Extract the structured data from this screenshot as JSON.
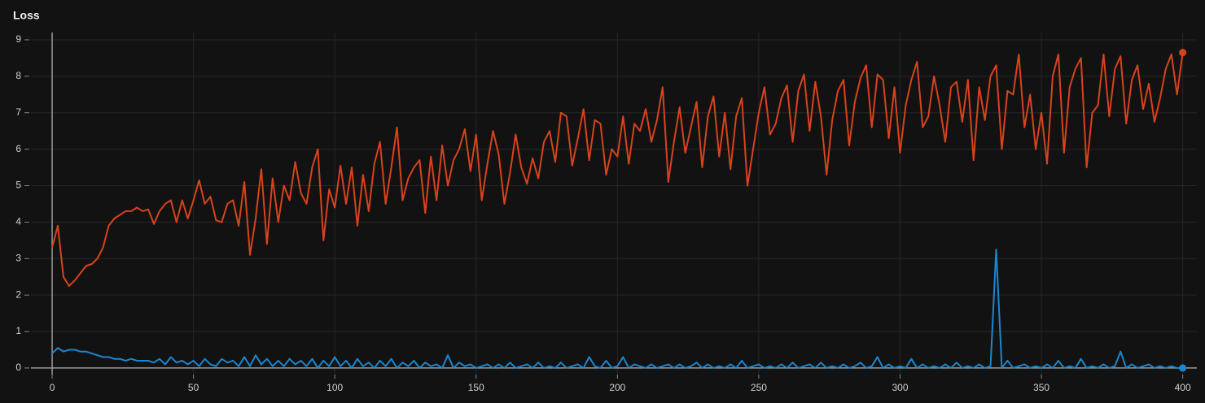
{
  "chart_data": {
    "type": "line",
    "title": "Loss",
    "x": [
      0,
      2,
      4,
      6,
      8,
      10,
      12,
      14,
      16,
      18,
      20,
      22,
      24,
      26,
      28,
      30,
      32,
      34,
      36,
      38,
      40,
      42,
      44,
      46,
      48,
      50,
      52,
      54,
      56,
      58,
      60,
      62,
      64,
      66,
      68,
      70,
      72,
      74,
      76,
      78,
      80,
      82,
      84,
      86,
      88,
      90,
      92,
      94,
      96,
      98,
      100,
      102,
      104,
      106,
      108,
      110,
      112,
      114,
      116,
      118,
      120,
      122,
      124,
      126,
      128,
      130,
      132,
      134,
      136,
      138,
      140,
      142,
      144,
      146,
      148,
      150,
      152,
      154,
      156,
      158,
      160,
      162,
      164,
      166,
      168,
      170,
      172,
      174,
      176,
      178,
      180,
      182,
      184,
      186,
      188,
      190,
      192,
      194,
      196,
      198,
      200,
      202,
      204,
      206,
      208,
      210,
      212,
      214,
      216,
      218,
      220,
      222,
      224,
      226,
      228,
      230,
      232,
      234,
      236,
      238,
      240,
      242,
      244,
      246,
      248,
      250,
      252,
      254,
      256,
      258,
      260,
      262,
      264,
      266,
      268,
      270,
      272,
      274,
      276,
      278,
      280,
      282,
      284,
      286,
      288,
      290,
      292,
      294,
      296,
      298,
      300,
      302,
      304,
      306,
      308,
      310,
      312,
      314,
      316,
      318,
      320,
      322,
      324,
      326,
      328,
      330,
      332,
      334,
      336,
      338,
      340,
      342,
      344,
      346,
      348,
      350,
      352,
      354,
      356,
      358,
      360,
      362,
      364,
      366,
      368,
      370,
      372,
      374,
      376,
      378,
      380,
      382,
      384,
      386,
      388,
      390,
      392,
      394,
      396,
      398,
      400
    ],
    "series": [
      {
        "color": "#d8431c",
        "values": [
          3.3,
          3.9,
          2.5,
          2.25,
          2.4,
          2.6,
          2.8,
          2.85,
          3.0,
          3.3,
          3.9,
          4.1,
          4.2,
          4.3,
          4.3,
          4.4,
          4.3,
          4.35,
          3.95,
          4.3,
          4.5,
          4.6,
          4.0,
          4.6,
          4.1,
          4.6,
          5.15,
          4.5,
          4.7,
          4.05,
          4.0,
          4.5,
          4.6,
          3.9,
          5.1,
          3.1,
          4.1,
          5.45,
          3.4,
          5.2,
          4.0,
          5.0,
          4.6,
          5.65,
          4.8,
          4.5,
          5.5,
          6.0,
          3.5,
          4.9,
          4.4,
          5.55,
          4.5,
          5.5,
          3.9,
          5.3,
          4.3,
          5.6,
          6.2,
          4.5,
          5.5,
          6.6,
          4.6,
          5.2,
          5.5,
          5.7,
          4.25,
          5.8,
          4.6,
          6.1,
          5.0,
          5.7,
          6.0,
          6.55,
          5.4,
          6.4,
          4.6,
          5.6,
          6.5,
          5.85,
          4.5,
          5.35,
          6.4,
          5.5,
          5.05,
          5.75,
          5.2,
          6.2,
          6.5,
          5.65,
          7.0,
          6.9,
          5.55,
          6.3,
          7.1,
          5.7,
          6.8,
          6.7,
          5.3,
          6.0,
          5.8,
          6.9,
          5.6,
          6.7,
          6.5,
          7.1,
          6.2,
          6.8,
          7.7,
          5.1,
          6.2,
          7.15,
          5.9,
          6.6,
          7.3,
          5.5,
          6.9,
          7.45,
          5.8,
          7.0,
          5.45,
          6.9,
          7.4,
          5.0,
          6.0,
          7.0,
          7.7,
          6.4,
          6.7,
          7.4,
          7.75,
          6.2,
          7.6,
          8.05,
          6.5,
          7.85,
          6.9,
          5.3,
          6.8,
          7.6,
          7.9,
          6.1,
          7.3,
          7.95,
          8.3,
          6.6,
          8.05,
          7.9,
          6.3,
          7.7,
          5.9,
          7.2,
          7.9,
          8.4,
          6.6,
          6.9,
          8.0,
          7.2,
          6.2,
          7.7,
          7.85,
          6.75,
          7.9,
          5.7,
          7.7,
          6.8,
          8.0,
          8.3,
          6.0,
          7.6,
          7.5,
          8.6,
          6.6,
          7.5,
          6.0,
          7.0,
          5.6,
          8.0,
          8.6,
          5.9,
          7.7,
          8.2,
          8.5,
          5.5,
          7.0,
          7.2,
          8.6,
          6.9,
          8.2,
          8.55,
          6.7,
          7.9,
          8.3,
          7.1,
          7.8,
          6.75,
          7.4,
          8.2,
          8.6,
          7.5,
          8.65
        ]
      },
      {
        "color": "#1b87d0",
        "values": [
          0.4,
          0.55,
          0.45,
          0.5,
          0.5,
          0.45,
          0.45,
          0.4,
          0.35,
          0.3,
          0.3,
          0.25,
          0.25,
          0.2,
          0.25,
          0.2,
          0.2,
          0.2,
          0.15,
          0.25,
          0.1,
          0.3,
          0.15,
          0.2,
          0.1,
          0.2,
          0.05,
          0.25,
          0.1,
          0.05,
          0.25,
          0.15,
          0.2,
          0.05,
          0.3,
          0.05,
          0.35,
          0.1,
          0.25,
          0.05,
          0.2,
          0.05,
          0.25,
          0.1,
          0.2,
          0.05,
          0.25,
          0.0,
          0.2,
          0.05,
          0.3,
          0.05,
          0.2,
          0.0,
          0.25,
          0.05,
          0.15,
          0.0,
          0.2,
          0.05,
          0.25,
          0.0,
          0.15,
          0.05,
          0.2,
          0.0,
          0.15,
          0.05,
          0.1,
          0.0,
          0.35,
          0.0,
          0.15,
          0.05,
          0.1,
          0.0,
          0.05,
          0.1,
          0.0,
          0.1,
          0.0,
          0.15,
          0.0,
          0.05,
          0.1,
          0.0,
          0.15,
          0.0,
          0.05,
          0.0,
          0.15,
          0.0,
          0.05,
          0.1,
          0.0,
          0.3,
          0.05,
          0.0,
          0.2,
          0.0,
          0.05,
          0.3,
          0.0,
          0.1,
          0.05,
          0.0,
          0.1,
          0.0,
          0.05,
          0.1,
          0.0,
          0.1,
          0.0,
          0.05,
          0.15,
          0.0,
          0.1,
          0.0,
          0.05,
          0.0,
          0.1,
          0.0,
          0.2,
          0.0,
          0.05,
          0.1,
          0.0,
          0.05,
          0.0,
          0.1,
          0.0,
          0.15,
          0.0,
          0.05,
          0.1,
          0.0,
          0.15,
          0.0,
          0.05,
          0.0,
          0.1,
          0.0,
          0.05,
          0.15,
          0.0,
          0.05,
          0.3,
          0.0,
          0.1,
          0.0,
          0.05,
          0.0,
          0.25,
          0.0,
          0.1,
          0.0,
          0.05,
          0.0,
          0.1,
          0.0,
          0.15,
          0.0,
          0.05,
          0.0,
          0.1,
          0.0,
          0.05,
          3.25,
          0.0,
          0.2,
          0.0,
          0.05,
          0.1,
          0.0,
          0.05,
          0.0,
          0.1,
          0.0,
          0.2,
          0.0,
          0.05,
          0.0,
          0.25,
          0.0,
          0.05,
          0.0,
          0.1,
          0.0,
          0.05,
          0.45,
          0.0,
          0.1,
          0.0,
          0.05,
          0.1,
          0.0,
          0.05,
          0.0,
          0.05,
          0.0,
          0.0
        ]
      }
    ],
    "xlim": [
      -7.5,
      405
    ],
    "ylim": [
      -0.18,
      9.2
    ],
    "xticks": [
      0,
      50,
      100,
      150,
      200,
      250,
      300,
      350,
      400
    ],
    "yticks": [
      0,
      1,
      2,
      3,
      4,
      5,
      6,
      7,
      8,
      9
    ],
    "grid": true
  }
}
